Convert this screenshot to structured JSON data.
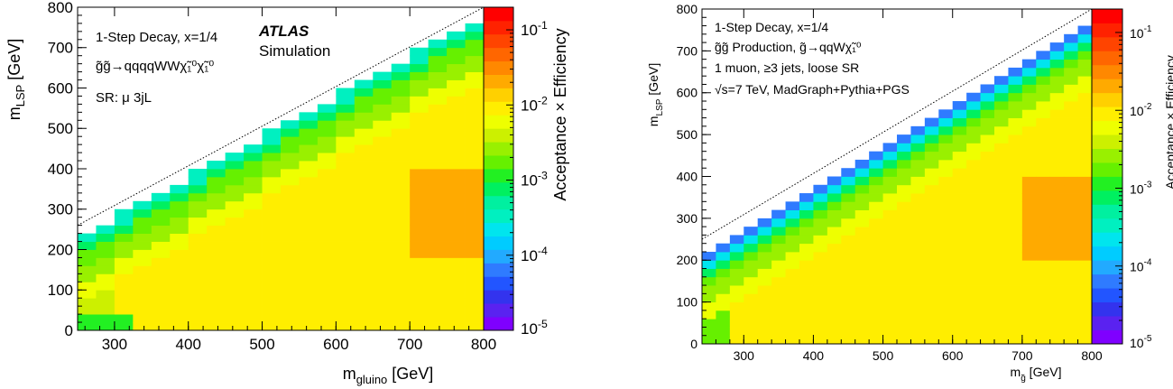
{
  "chart_data": [
    {
      "type": "heatmap",
      "id": "left",
      "xlabel_main": "m",
      "xlabel_sub": "gluino",
      "xlabel_unit": " [GeV]",
      "ylabel_main": "m",
      "ylabel_sub": "LSP",
      "ylabel_unit": " [GeV]",
      "xlim": [
        250,
        800
      ],
      "ylim": [
        0,
        800
      ],
      "x_ticks": [
        300,
        400,
        500,
        600,
        700,
        800
      ],
      "y_ticks": [
        0,
        100,
        200,
        300,
        400,
        500,
        600,
        700,
        800
      ],
      "bin_width": 25,
      "bin_height": 20,
      "diagonal": [
        [
          250,
          260
        ],
        [
          800,
          800
        ]
      ],
      "annotations": [
        "1-Step Decay, x=1/4",
        "ATLAS",
        "Simulation",
        "g̃g̃→qqqqWWχ̃₁⁰χ̃₁⁰",
        "SR: μ 3jL"
      ],
      "colorbar": {
        "label": "Acceptance × Efficiency",
        "scale": "log",
        "range": [
          1e-05,
          0.2
        ],
        "tick_labels": [
          "10-1",
          "10-2",
          "10-3",
          "10-4",
          "10-5"
        ],
        "tick_values": [
          0.1,
          0.01,
          0.001,
          0.0001,
          1e-05
        ]
      }
    },
    {
      "type": "heatmap",
      "id": "right",
      "xlabel_main": "m",
      "xlabel_sub": "g̃",
      "xlabel_unit": " [GeV]",
      "ylabel_main": "m",
      "ylabel_sub": "LSP",
      "ylabel_unit": " [GeV]",
      "xlim": [
        240,
        800
      ],
      "ylim": [
        0,
        800
      ],
      "x_ticks": [
        300,
        400,
        500,
        600,
        700,
        800
      ],
      "y_ticks": [
        0,
        100,
        200,
        300,
        400,
        500,
        600,
        700,
        800
      ],
      "bin_width": 20,
      "bin_height": 20,
      "diagonal": [
        [
          240,
          250
        ],
        [
          800,
          810
        ]
      ],
      "annotations": [
        "1-Step Decay, x=1/4",
        "g̃g̃ Production, g̃→qqWχ̃₁⁰",
        "1 muon, ≥3 jets, loose SR",
        "√s=7 TeV, MadGraph+Pythia+PGS"
      ],
      "colorbar": {
        "label": "Acceptance × Efficiency",
        "scale": "log",
        "range": [
          1e-05,
          0.2
        ],
        "tick_labels": [
          "10-1",
          "10-2",
          "10-3",
          "10-4",
          "10-5"
        ],
        "tick_values": [
          0.1,
          0.01,
          0.001,
          0.0001,
          1e-05
        ]
      }
    }
  ],
  "palette": [
    "#7f00ff",
    "#5a22f0",
    "#3333ee",
    "#2255ff",
    "#2f7bff",
    "#22aaff",
    "#00ccff",
    "#00e5ee",
    "#00f0c0",
    "#00f0a0",
    "#00f060",
    "#22f022",
    "#66f000",
    "#99f000",
    "#ccf000",
    "#eeff00",
    "#ffee00",
    "#ffd000",
    "#ffaa00",
    "#ff8800",
    "#ff6600",
    "#ff4400",
    "#ff2200",
    "#ff0000"
  ]
}
